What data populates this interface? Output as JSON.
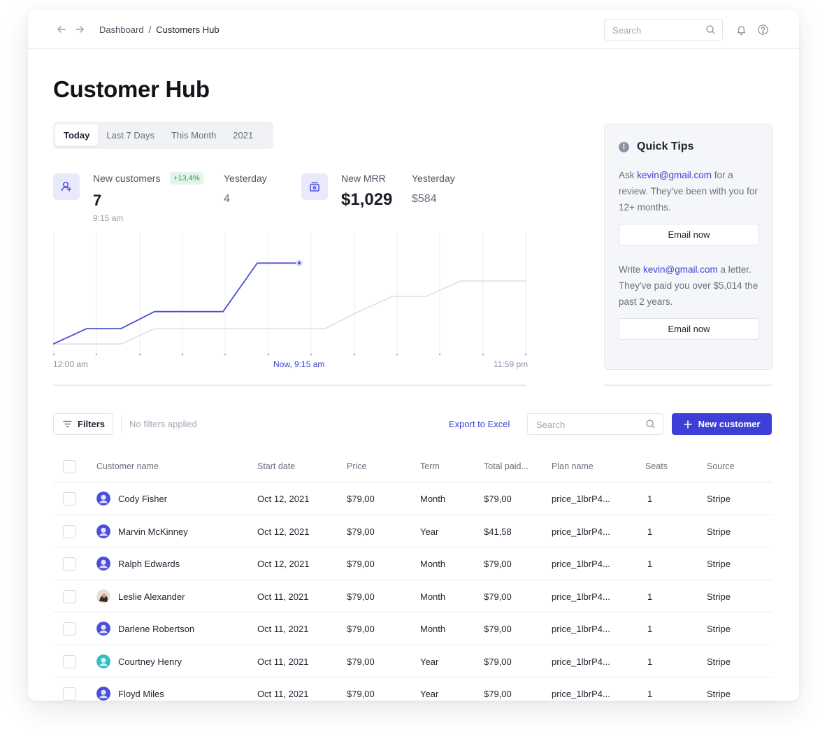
{
  "topbar": {
    "breadcrumb": [
      "Dashboard",
      "Customers Hub"
    ],
    "breadcrumb_separator": "/",
    "search_placeholder": "Search"
  },
  "page": {
    "title": "Customer Hub",
    "periods": [
      "Today",
      "Last 7 Days",
      "This Month",
      "2021"
    ],
    "active_period": "Today"
  },
  "stats": {
    "customers": {
      "label": "New customers",
      "badge": "+13,4%",
      "value": "7",
      "time": "9:15 am",
      "prev_label": "Yesterday",
      "prev_value": "4"
    },
    "mrr": {
      "label": "New MRR",
      "value": "$1,029",
      "prev_label": "Yesterday",
      "prev_value": "$584"
    }
  },
  "chart_labels": {
    "start": "12:00 am",
    "now": "Now, 9:15 am",
    "end": "11:59 pm"
  },
  "chart_data": {
    "type": "line",
    "x_labels": [
      "12:00 am",
      "Now, 9:15 am",
      "11:59 pm"
    ],
    "series": [
      {
        "color": "#4b4fd8",
        "values": [
          0.0,
          0.18,
          0.18,
          0.38,
          0.38,
          0.38,
          0.95,
          0.95
        ]
      },
      {
        "color": "#dcdee4",
        "values": [
          0.0,
          0.0,
          0.18,
          0.18,
          0.18,
          0.18,
          0.18,
          0.18,
          0.38,
          0.56,
          0.56,
          0.74,
          0.74
        ]
      }
    ]
  },
  "tips": {
    "title": "Quick Tips",
    "tip1_prefix": "Ask ",
    "tip1_email": "kevin@gmail.com",
    "tip1_suffix": " for a review. They've been with you for 12+ months.",
    "tip1_button": "Email now",
    "tip2_prefix": "Write ",
    "tip2_email": "kevin@gmail.com",
    "tip2_suffix": " a letter. They've paid you over $5,014 the past 2 years.",
    "tip2_button": "Email now"
  },
  "toolbar": {
    "filters_label": "Filters",
    "no_filters": "No filters applied",
    "export_label": "Export to Excel",
    "search_placeholder": "Search",
    "new_button": "New customer"
  },
  "table": {
    "headers": [
      "Customer name",
      "Start date",
      "Price",
      "Term",
      "Total paid...",
      "Plan name",
      "Seats",
      "Source"
    ],
    "rows": [
      {
        "name": "Cody Fisher",
        "avatar": "default",
        "start": "Oct 12, 2021",
        "price": "$79,00",
        "term": "Month",
        "total": "$79,00",
        "plan": "price_1lbrP4...",
        "seats": "1",
        "source": "Stripe"
      },
      {
        "name": "Marvin McKinney",
        "avatar": "default",
        "start": "Oct 12, 2021",
        "price": "$79,00",
        "term": "Year",
        "total": "$41,58",
        "plan": "price_1lbrP4...",
        "seats": "1",
        "source": "Stripe"
      },
      {
        "name": "Ralph Edwards",
        "avatar": "default",
        "start": "Oct 12, 2021",
        "price": "$79,00",
        "term": "Month",
        "total": "$79,00",
        "plan": "price_1lbrP4...",
        "seats": "1",
        "source": "Stripe"
      },
      {
        "name": "Leslie Alexander",
        "avatar": "photo",
        "start": "Oct 11, 2021",
        "price": "$79,00",
        "term": "Month",
        "total": "$79,00",
        "plan": "price_1lbrP4...",
        "seats": "1",
        "source": "Stripe"
      },
      {
        "name": "Darlene Robertson",
        "avatar": "default",
        "start": "Oct 11, 2021",
        "price": "$79,00",
        "term": "Month",
        "total": "$79,00",
        "plan": "price_1lbrP4...",
        "seats": "1",
        "source": "Stripe"
      },
      {
        "name": "Courtney Henry",
        "avatar": "teal",
        "start": "Oct 11, 2021",
        "price": "$79,00",
        "term": "Year",
        "total": "$79,00",
        "plan": "price_1lbrP4...",
        "seats": "1",
        "source": "Stripe"
      },
      {
        "name": "Floyd Miles",
        "avatar": "default",
        "start": "Oct 11, 2021",
        "price": "$79,00",
        "term": "Year",
        "total": "$79,00",
        "plan": "price_1lbrP4...",
        "seats": "1",
        "source": "Stripe"
      }
    ]
  },
  "colors": {
    "accent": "#3e3fd6",
    "badge_green": "#2f9e57"
  }
}
